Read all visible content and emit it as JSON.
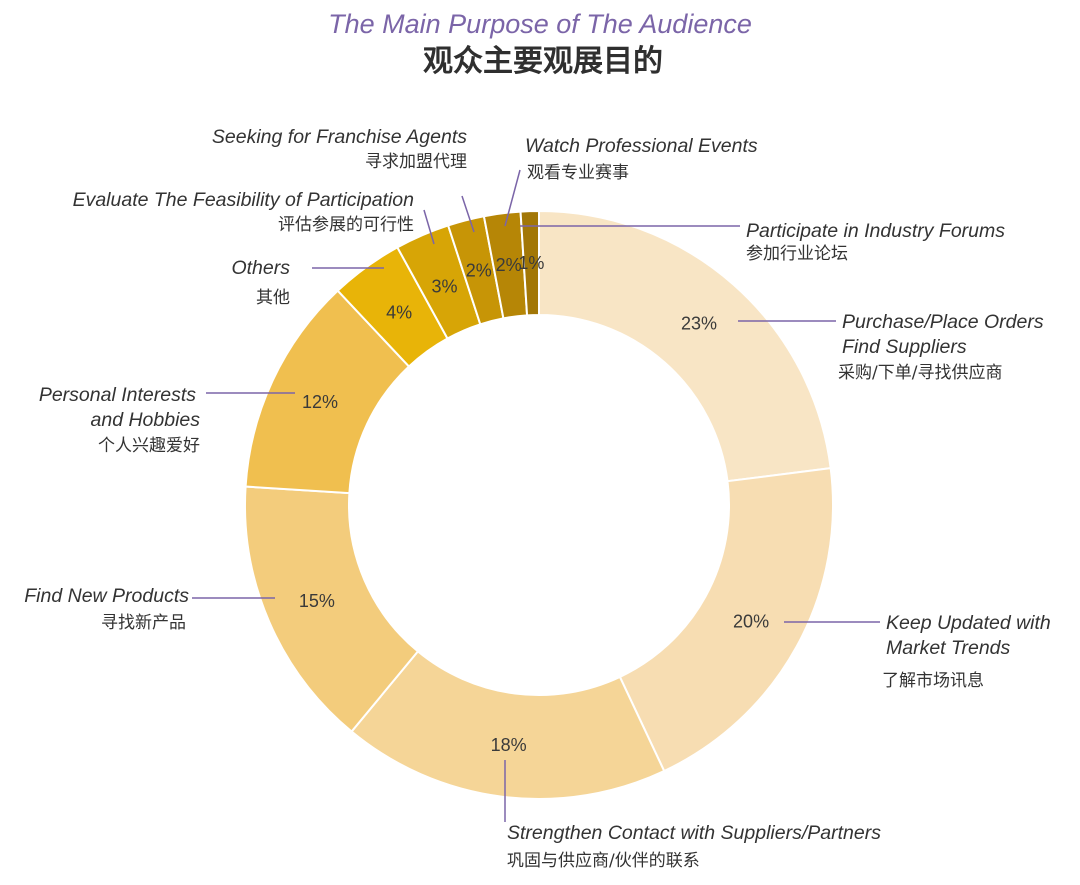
{
  "chart_data": {
    "type": "pie",
    "title": "The Main Purpose of The Audience",
    "subtitle": "观众主要观展目的",
    "slices": [
      {
        "name_en": "Purchase/Place Orders Find Suppliers",
        "name_cn": "采购/下单/寻找供应商",
        "value": 23,
        "label": "23%",
        "color": "#f8e5c5"
      },
      {
        "name_en": "Keep Updated with Market Trends",
        "name_cn": "了解市场讯息",
        "value": 20,
        "label": "20%",
        "color": "#f7ddb2"
      },
      {
        "name_en": "Strengthen Contact with Suppliers/Partners",
        "name_cn": "巩固与供应商/伙伴的联系",
        "value": 18,
        "label": "18%",
        "color": "#f5d597"
      },
      {
        "name_en": "Find New Products",
        "name_cn": "寻找新产品",
        "value": 15,
        "label": "15%",
        "color": "#f3cc7c"
      },
      {
        "name_en": "Personal Interests and Hobbies",
        "name_cn": "个人兴趣爱好",
        "value": 12,
        "label": "12%",
        "color": "#f0bf4f"
      },
      {
        "name_en": "Others",
        "name_cn": "其他",
        "value": 4,
        "label": "4%",
        "color": "#e8b408"
      },
      {
        "name_en": "Evaluate The Feasibility of Participation",
        "name_cn": "评估参展的可行性",
        "value": 3,
        "label": "3%",
        "color": "#d7a506"
      },
      {
        "name_en": "Seeking for Franchise Agents",
        "name_cn": "寻求加盟代理",
        "value": 2,
        "label": "2%",
        "color": "#c79506"
      },
      {
        "name_en": "Watch Professional Events",
        "name_cn": "观看专业赛事",
        "value": 2,
        "label": "2%",
        "color": "#b68606"
      },
      {
        "name_en": "Participate in Industry Forums",
        "name_cn": "参加行业论坛",
        "value": 1,
        "label": "1%",
        "color": "#a27707"
      }
    ],
    "legend": "none",
    "colors": {
      "title_en": "#7b65a8",
      "leader_lines": "#7b65a8"
    }
  }
}
